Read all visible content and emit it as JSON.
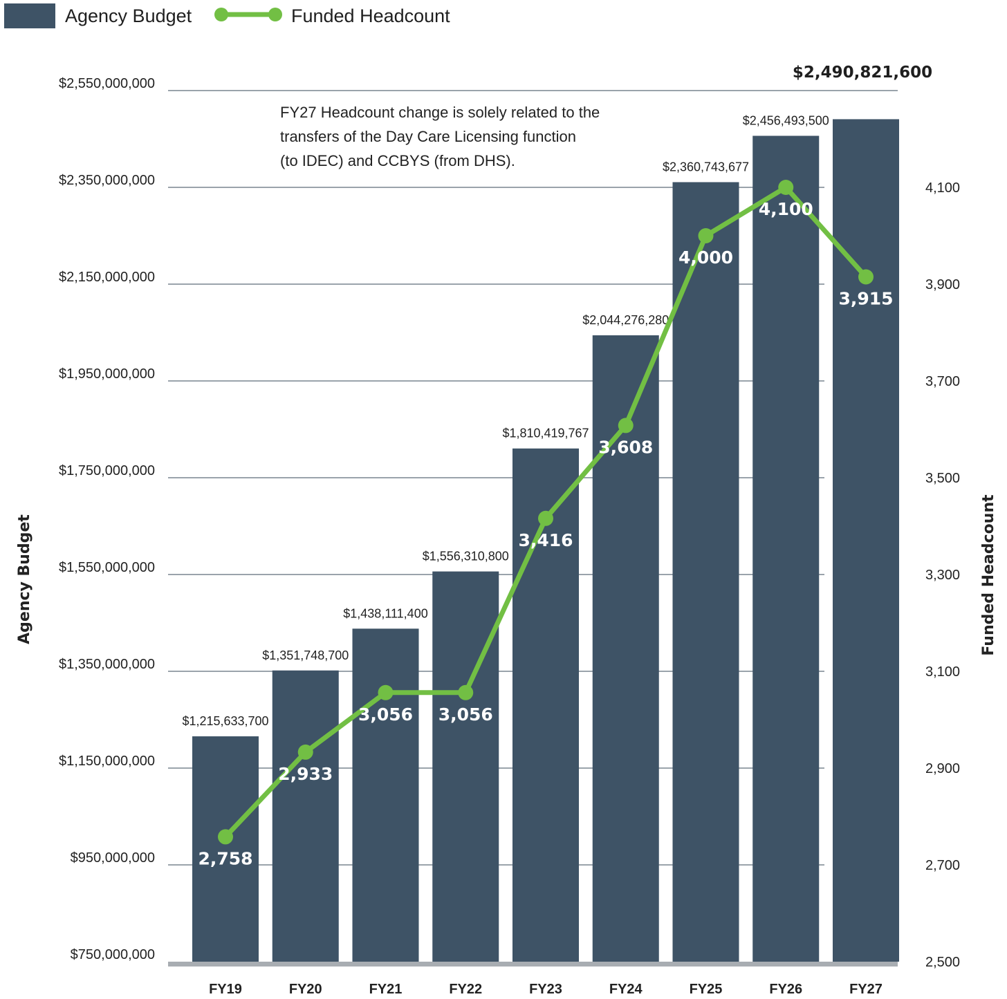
{
  "legend": {
    "bar_label": "Agency Budget",
    "line_label": "Funded Headcount"
  },
  "colors": {
    "bar": "#3e5366",
    "line": "#72bf44",
    "grid": "#9aa3ab",
    "baseline": "#a8adb2"
  },
  "annotation": {
    "lines": [
      "FY27 Headcount change is solely related to the",
      "transfers of the Day Care Licensing function",
      "(to IDEC) and CCBYS (from DHS)."
    ]
  },
  "chart_data": {
    "type": "bar",
    "categories": [
      "FY19",
      "FY20",
      "FY21",
      "FY22",
      "FY23",
      "FY24",
      "FY25",
      "FY26",
      "FY27"
    ],
    "series": [
      {
        "name": "Agency Budget",
        "type": "bar",
        "axis": "left",
        "values": [
          1215633700,
          1351748700,
          1438111400,
          1556310800,
          1810419767,
          2044276280,
          2360743677,
          2456493500,
          2490821600
        ],
        "labels": [
          "$1,215,633,700",
          "$1,351,748,700",
          "$1,438,111,400",
          "$1,556,310,800",
          "$1,810,419,767",
          "$2,044,276,280",
          "$2,360,743,677",
          "$2,456,493,500",
          "$2,490,821,600"
        ]
      },
      {
        "name": "Funded Headcount",
        "type": "line",
        "axis": "right",
        "values": [
          2758,
          2933,
          3056,
          3056,
          3416,
          3608,
          4000,
          4100,
          3915
        ],
        "labels": [
          "2,758",
          "2,933",
          "3,056",
          "3,056",
          "3,416",
          "3,608",
          "4,000",
          "4,100",
          "3,915"
        ]
      }
    ],
    "ylabel": "Agency Budget",
    "y2label": "Funded Headcount",
    "ylim": [
      750000000,
      2550000000
    ],
    "y2lim": [
      2500,
      4300
    ],
    "yticks": [
      750000000,
      950000000,
      1150000000,
      1350000000,
      1550000000,
      1750000000,
      1950000000,
      2150000000,
      2350000000,
      2550000000
    ],
    "ytick_labels": [
      "$750,000,000",
      "$950,000,000",
      "$1,150,000,000",
      "$1,350,000,000",
      "$1,550,000,000",
      "$1,750,000,000",
      "$1,950,000,000",
      "$2,150,000,000",
      "$2,350,000,000",
      "$2,550,000,000"
    ],
    "y2ticks": [
      2500,
      2700,
      2900,
      3100,
      3300,
      3500,
      3700,
      3900,
      4100
    ],
    "y2tick_labels": [
      "2,500",
      "2,700",
      "2,900",
      "3,100",
      "3,300",
      "3,500",
      "3,700",
      "3,900",
      "4,100"
    ],
    "grid": true,
    "legend_position": "top-left"
  }
}
